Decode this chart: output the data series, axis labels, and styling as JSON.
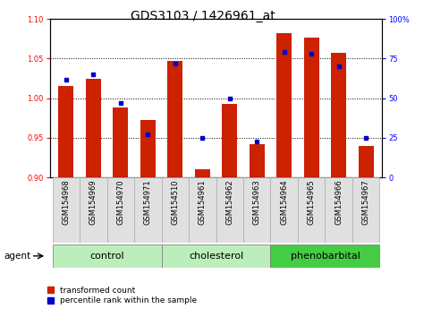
{
  "title": "GDS3103 / 1426961_at",
  "samples": [
    "GSM154968",
    "GSM154969",
    "GSM154970",
    "GSM154971",
    "GSM154510",
    "GSM154961",
    "GSM154962",
    "GSM154963",
    "GSM154964",
    "GSM154965",
    "GSM154966",
    "GSM154967"
  ],
  "transformed_count": [
    1.015,
    1.025,
    0.988,
    0.973,
    1.047,
    0.91,
    0.993,
    0.942,
    1.082,
    1.077,
    1.057,
    0.94
  ],
  "percentile_rank": [
    62,
    65,
    47,
    27,
    72,
    25,
    50,
    23,
    79,
    78,
    70,
    25
  ],
  "group_specs": [
    {
      "label": "control",
      "indices": [
        0,
        1,
        2,
        3
      ],
      "color": "#bbeebb"
    },
    {
      "label": "cholesterol",
      "indices": [
        4,
        5,
        6,
        7
      ],
      "color": "#bbeebb"
    },
    {
      "label": "phenobarbital",
      "indices": [
        8,
        9,
        10,
        11
      ],
      "color": "#44cc44"
    }
  ],
  "bar_color": "#cc2200",
  "percentile_color": "#0000cc",
  "ylim_left": [
    0.9,
    1.1
  ],
  "ylim_right": [
    0,
    100
  ],
  "yticks_left": [
    0.9,
    0.95,
    1.0,
    1.05,
    1.1
  ],
  "yticks_right": [
    0,
    25,
    50,
    75,
    100
  ],
  "yticklabels_right": [
    "0",
    "25",
    "50",
    "75",
    "100%"
  ],
  "grid_lines": [
    0.95,
    1.0,
    1.05
  ],
  "bar_width": 0.55,
  "agent_label": "agent",
  "legend_items": [
    {
      "label": "transformed count",
      "color": "#cc2200"
    },
    {
      "label": "percentile rank within the sample",
      "color": "#0000cc"
    }
  ],
  "title_fontsize": 10,
  "tick_fontsize": 6,
  "group_label_fontsize": 8
}
